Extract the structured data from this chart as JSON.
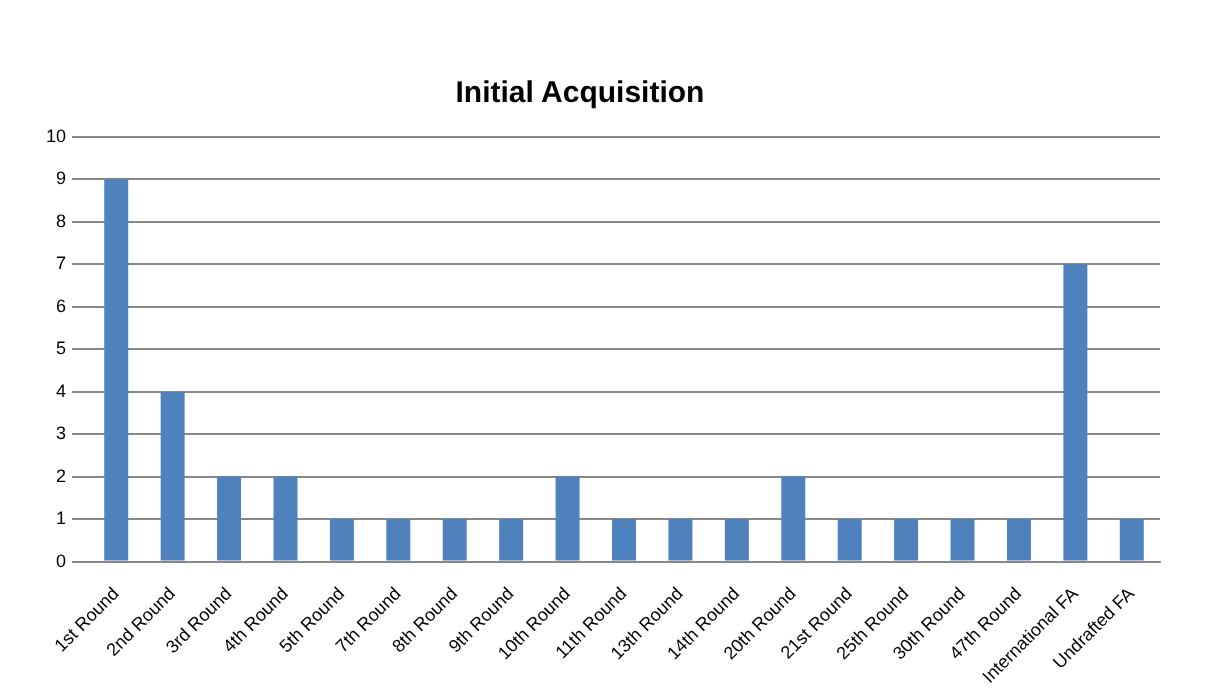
{
  "chart_data": {
    "type": "bar",
    "title": "Initial Acquisition",
    "categories": [
      "1st Round",
      "2nd Round",
      "3rd Round",
      "4th Round",
      "5th Round",
      "7th Round",
      "8th Round",
      "9th Round",
      "10th Round",
      "11th Round",
      "13th Round",
      "14th Round",
      "20th Round",
      "21st Round",
      "25th Round",
      "30th Round",
      "47th Round",
      "International FA",
      "Undrafted FA"
    ],
    "values": [
      9,
      4,
      2,
      2,
      1,
      1,
      1,
      1,
      2,
      1,
      1,
      1,
      2,
      1,
      1,
      1,
      1,
      7,
      1
    ],
    "color": "#4f81bd",
    "ylim": [
      0,
      10
    ],
    "yticks": [
      0,
      1,
      2,
      3,
      4,
      5,
      6,
      7,
      8,
      9,
      10
    ],
    "grid": "y"
  }
}
